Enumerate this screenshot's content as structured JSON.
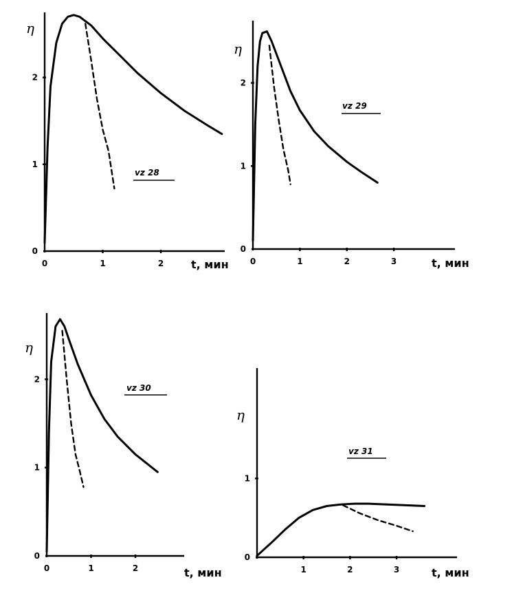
{
  "chart_data": [
    {
      "type": "line",
      "ylabel": "η",
      "xlabel": "t, мин",
      "annotation": "vz 28",
      "xlim": [
        0,
        3.1
      ],
      "ylim": [
        0,
        2.75
      ],
      "xticks": [
        "0",
        "1",
        "2"
      ],
      "yticks": [
        "0",
        "1",
        "2"
      ],
      "series": [
        {
          "style": "solid",
          "x": [
            0,
            0.05,
            0.1,
            0.2,
            0.3,
            0.4,
            0.5,
            0.6,
            0.8,
            1.0,
            1.3,
            1.6,
            2.0,
            2.4,
            2.8,
            3.05
          ],
          "y": [
            0.1,
            1.2,
            1.9,
            2.4,
            2.62,
            2.7,
            2.72,
            2.7,
            2.6,
            2.45,
            2.25,
            2.05,
            1.82,
            1.62,
            1.45,
            1.35
          ]
        },
        {
          "style": "dashed",
          "x": [
            0.7,
            0.8,
            0.9,
            1.0,
            1.1,
            1.2
          ],
          "y": [
            2.62,
            2.2,
            1.75,
            1.4,
            1.15,
            0.72
          ]
        }
      ]
    },
    {
      "type": "line",
      "ylabel": "η",
      "xlabel": "t, мин",
      "annotation": "vz 29",
      "xlim": [
        0,
        4.3
      ],
      "ylim": [
        0,
        2.75
      ],
      "xticks": [
        "0",
        "1",
        "2",
        "3"
      ],
      "yticks": [
        "0",
        "1",
        "2"
      ],
      "series": [
        {
          "style": "solid",
          "x": [
            0,
            0.05,
            0.1,
            0.15,
            0.2,
            0.3,
            0.4,
            0.6,
            0.8,
            1.0,
            1.3,
            1.6,
            2.0,
            2.3,
            2.65
          ],
          "y": [
            0.1,
            1.5,
            2.2,
            2.5,
            2.6,
            2.62,
            2.5,
            2.2,
            1.9,
            1.67,
            1.42,
            1.24,
            1.05,
            0.93,
            0.8
          ]
        },
        {
          "style": "dashed",
          "x": [
            0.35,
            0.45,
            0.55,
            0.65,
            0.75,
            0.8
          ],
          "y": [
            2.45,
            1.95,
            1.55,
            1.2,
            0.95,
            0.78
          ]
        }
      ]
    },
    {
      "type": "line",
      "ylabel": "η",
      "xlabel": "t, мин",
      "annotation": "vz 30",
      "xlim": [
        0,
        3.1
      ],
      "ylim": [
        0,
        2.75
      ],
      "xticks": [
        "0",
        "1",
        "2"
      ],
      "yticks": [
        "0",
        "1",
        "2"
      ],
      "series": [
        {
          "style": "solid",
          "x": [
            0,
            0.05,
            0.1,
            0.2,
            0.3,
            0.4,
            0.5,
            0.7,
            1.0,
            1.3,
            1.6,
            2.0,
            2.3,
            2.5
          ],
          "y": [
            0.05,
            1.4,
            2.2,
            2.6,
            2.68,
            2.6,
            2.45,
            2.17,
            1.82,
            1.55,
            1.35,
            1.15,
            1.03,
            0.95
          ]
        },
        {
          "style": "dashed",
          "x": [
            0.35,
            0.45,
            0.55,
            0.65,
            0.75,
            0.83
          ],
          "y": [
            2.55,
            2.0,
            1.5,
            1.15,
            0.95,
            0.78
          ]
        }
      ]
    },
    {
      "type": "line",
      "ylabel": "η",
      "xlabel": "t, мин",
      "annotation": "vz 31",
      "xlim": [
        0,
        4.3
      ],
      "ylim": [
        0,
        2.4
      ],
      "xticks": [
        "1",
        "2",
        "3"
      ],
      "yticks": [
        "0",
        "1"
      ],
      "series": [
        {
          "style": "solid",
          "x": [
            0,
            0.3,
            0.6,
            0.9,
            1.2,
            1.5,
            1.8,
            2.1,
            2.4,
            2.8,
            3.2,
            3.6
          ],
          "y": [
            0.02,
            0.18,
            0.35,
            0.5,
            0.6,
            0.65,
            0.67,
            0.68,
            0.68,
            0.67,
            0.66,
            0.65
          ]
        },
        {
          "style": "dashed",
          "x": [
            1.85,
            2.2,
            2.6,
            3.0,
            3.35
          ],
          "y": [
            0.66,
            0.56,
            0.47,
            0.4,
            0.33
          ]
        }
      ]
    }
  ]
}
